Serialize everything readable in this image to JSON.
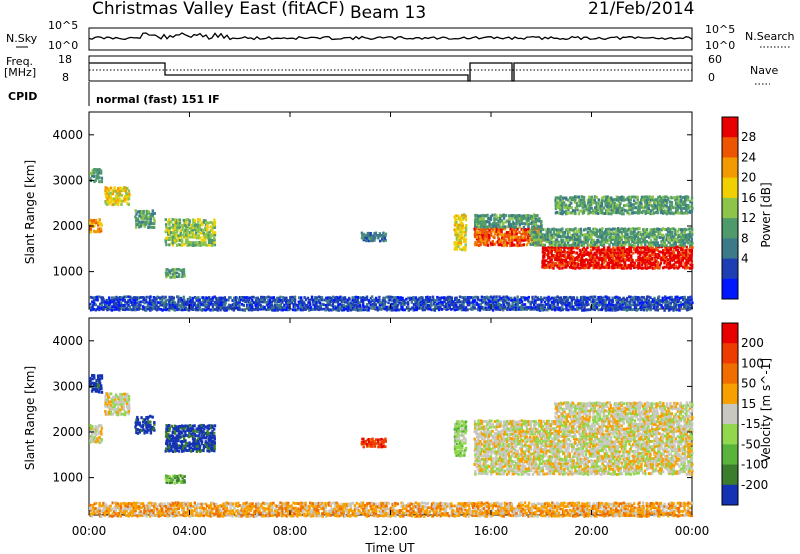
{
  "header": {
    "station": "Christmas Valley East (fitACF)",
    "beam": "Beam 13",
    "date": "21/Feb/2014"
  },
  "info_panels": {
    "nsky_label": "N.Sky",
    "nsearch_label": "N.Search",
    "noise_ticks": [
      "10^5",
      "10^0"
    ],
    "freq_label": "Freq.",
    "freq_unit": "[MHz]",
    "freq_ticks": [
      "18",
      "8"
    ],
    "nave_label": "Nave",
    "nave_ticks": [
      "60",
      "0"
    ],
    "cpid_label": "CPID",
    "cpid_value": "normal (fast) 151 IF"
  },
  "chart_data": [
    {
      "type": "heatmap",
      "name": "power",
      "ylabel": "Slant Range [km]",
      "xlabel": "Time UT",
      "x_ticks": [
        "00:00",
        "04:00",
        "08:00",
        "12:00",
        "16:00",
        "20:00",
        "00:00"
      ],
      "x_range_hours": [
        0,
        24
      ],
      "y_ticks": [
        1000,
        2000,
        3000,
        4000
      ],
      "y_range_km": [
        180,
        4500
      ],
      "colorbar": {
        "label": "Power [dB]",
        "ticks": [
          "28",
          "24",
          "20",
          "16",
          "12",
          "8",
          "4"
        ],
        "colors": [
          "#0018ff",
          "#1e3fb4",
          "#3c7a8a",
          "#4f9a6a",
          "#8dc44a",
          "#f0d000",
          "#f39a00",
          "#ee5500",
          "#e80000"
        ]
      },
      "features": [
        {
          "t0": 0.0,
          "t1": 0.5,
          "r0": 1900,
          "r1": 2200,
          "level": 6
        },
        {
          "t0": 0.0,
          "t1": 0.5,
          "r0": 3000,
          "r1": 3300,
          "level": 3
        },
        {
          "t0": 0.6,
          "t1": 1.6,
          "r0": 2500,
          "r1": 2900,
          "level": 5
        },
        {
          "t0": 1.8,
          "t1": 2.6,
          "r0": 2000,
          "r1": 2400,
          "level": 3
        },
        {
          "t0": 3.0,
          "t1": 5.0,
          "r0": 1600,
          "r1": 2200,
          "level": 4
        },
        {
          "t0": 3.0,
          "t1": 3.8,
          "r0": 900,
          "r1": 1100,
          "level": 3
        },
        {
          "t0": 10.8,
          "t1": 11.8,
          "r0": 1700,
          "r1": 1900,
          "level": 2
        },
        {
          "t0": 14.5,
          "t1": 15.0,
          "r0": 1500,
          "r1": 2300,
          "level": 5
        },
        {
          "t0": 15.3,
          "t1": 18.0,
          "r0": 1600,
          "r1": 2000,
          "level": 7
        },
        {
          "t0": 15.3,
          "t1": 18.0,
          "r0": 2000,
          "r1": 2300,
          "level": 3
        },
        {
          "t0": 18.0,
          "t1": 24.0,
          "r0": 1100,
          "r1": 1600,
          "level": 8
        },
        {
          "t0": 17.5,
          "t1": 24.0,
          "r0": 1600,
          "r1": 2000,
          "level": 3
        },
        {
          "t0": 18.5,
          "t1": 24.0,
          "r0": 2300,
          "r1": 2700,
          "level": 3
        },
        {
          "t0": 0.0,
          "t1": 24.0,
          "r0": 180,
          "r1": 500,
          "level": 1
        }
      ]
    },
    {
      "type": "heatmap",
      "name": "velocity",
      "ylabel": "Slant Range [km]",
      "xlabel": "Time UT",
      "x_ticks": [
        "00:00",
        "04:00",
        "08:00",
        "12:00",
        "16:00",
        "20:00",
        "00:00"
      ],
      "x_range_hours": [
        0,
        24
      ],
      "y_ticks": [
        1000,
        2000,
        3000,
        4000
      ],
      "y_range_km": [
        180,
        4500
      ],
      "colorbar": {
        "label": "Velocity [m s^-1]",
        "ticks": [
          "200",
          "100",
          "50",
          "15",
          "-15",
          "-50",
          "-100",
          "-200"
        ],
        "colors": [
          "#1432b4",
          "#3a7d2c",
          "#5ab43c",
          "#92d84e",
          "#c8c8c0",
          "#f7a000",
          "#f06e00",
          "#ee3c00",
          "#e80000"
        ]
      },
      "features": [
        {
          "t0": 0.0,
          "t1": 0.5,
          "r0": 2900,
          "r1": 3300,
          "level": 0
        },
        {
          "t0": 0.0,
          "t1": 0.5,
          "r0": 1800,
          "r1": 2200,
          "level": 4
        },
        {
          "t0": 0.6,
          "t1": 1.6,
          "r0": 2400,
          "r1": 2900,
          "level": 4
        },
        {
          "t0": 1.8,
          "t1": 2.6,
          "r0": 2000,
          "r1": 2400,
          "level": 0
        },
        {
          "t0": 3.0,
          "t1": 5.0,
          "r0": 1600,
          "r1": 2200,
          "level": 0
        },
        {
          "t0": 3.0,
          "t1": 3.8,
          "r0": 900,
          "r1": 1100,
          "level": 2
        },
        {
          "t0": 10.8,
          "t1": 11.8,
          "r0": 1700,
          "r1": 1900,
          "level": 7
        },
        {
          "t0": 14.5,
          "t1": 15.0,
          "r0": 1500,
          "r1": 2300,
          "level": 3
        },
        {
          "t0": 15.3,
          "t1": 24.0,
          "r0": 1100,
          "r1": 2300,
          "level": 4
        },
        {
          "t0": 18.5,
          "t1": 24.0,
          "r0": 2300,
          "r1": 2700,
          "level": 4
        },
        {
          "t0": 0.0,
          "t1": 24.0,
          "r0": 180,
          "r1": 500,
          "level": 5
        }
      ]
    }
  ]
}
